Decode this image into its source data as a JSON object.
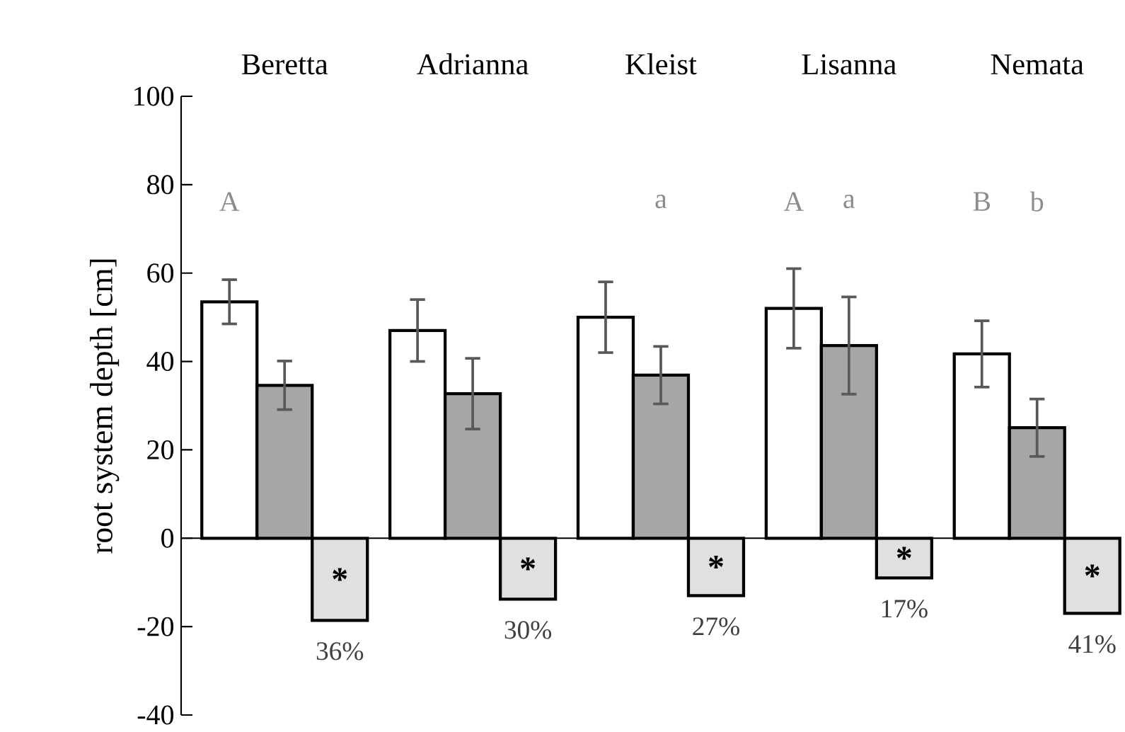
{
  "chart_data": {
    "type": "bar",
    "ylabel": "root system depth [cm]",
    "categories": [
      "Beretta",
      "Adrianna",
      "Kleist",
      "Lisanna",
      "Nemata"
    ],
    "series": [
      {
        "color": "#ffffff",
        "values": [
          53.5,
          47,
          50,
          52,
          41.7
        ],
        "errors": [
          5,
          7,
          8,
          9,
          7.5
        ]
      },
      {
        "color": "#a6a6a6",
        "values": [
          34.6,
          32.7,
          36.9,
          43.6,
          25
        ],
        "errors": [
          5.5,
          8,
          6.5,
          11,
          6.5
        ]
      },
      {
        "color": "#e0e0e0",
        "values": [
          -18.6,
          -13.8,
          -13,
          -9,
          -17
        ]
      }
    ],
    "annotations": [
      "A",
      "a",
      "A",
      "a",
      "B",
      "b",
      "*",
      "*",
      "*",
      "*",
      "*",
      "36%",
      "30%",
      "27%",
      "17%",
      "41%"
    ],
    "ylim": [
      -40,
      100
    ],
    "yticks": [
      -40,
      -20,
      0,
      20,
      40,
      60,
      80,
      100
    ]
  }
}
